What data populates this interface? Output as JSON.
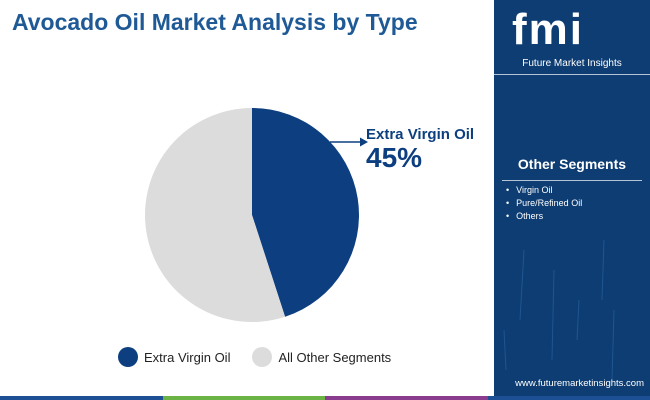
{
  "title": "Avocado Oil Market Analysis by Type",
  "callout": {
    "label": "Extra Virgin Oil",
    "value": "45%"
  },
  "legend": [
    {
      "label": "Extra Virgin Oil",
      "color": "#0d3f80"
    },
    {
      "label": "All Other Segments",
      "color": "#dcdcdc"
    }
  ],
  "sidebar": {
    "logo_text": "fmi",
    "logo_caption": "Future Market Insights",
    "heading": "Other Segments",
    "items": [
      "Virgin Oil",
      "Pure/Refined Oil",
      "Others"
    ],
    "url": "www.futuremarketinsights.com"
  },
  "bottom_bar_colors": [
    "#1c4f93",
    "#6bb344",
    "#8a3c8f",
    "#1c4f93"
  ],
  "chart_data": {
    "type": "pie",
    "title": "Avocado Oil Market Analysis by Type",
    "categories": [
      "Extra Virgin Oil",
      "All Other Segments"
    ],
    "values": [
      45,
      55
    ],
    "colors": [
      "#0d3f80",
      "#dcdcdc"
    ],
    "legend_position": "bottom"
  }
}
